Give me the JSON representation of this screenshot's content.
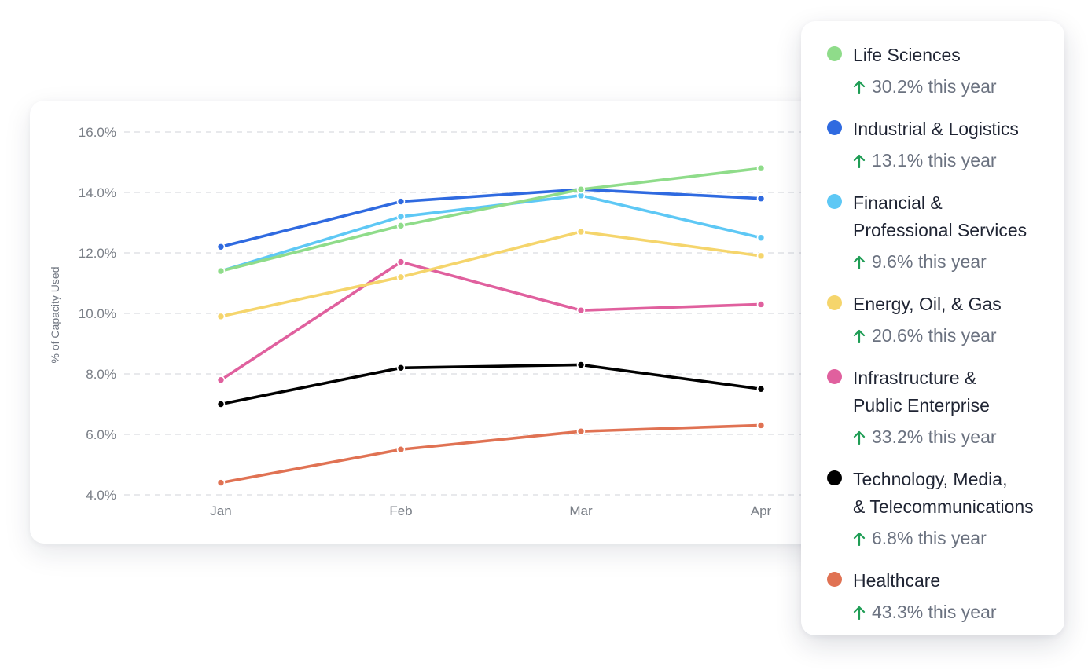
{
  "chart_data": {
    "type": "line",
    "categories": [
      "Jan",
      "Feb",
      "Mar",
      "Apr"
    ],
    "ylabel": "% of Capacity Used",
    "ylim": [
      4.0,
      16.0
    ],
    "yticks": [
      4.0,
      6.0,
      8.0,
      10.0,
      12.0,
      14.0,
      16.0
    ],
    "ytick_labels": [
      "4.0%",
      "6.0%",
      "8.0%",
      "10.0%",
      "12.0%",
      "14.0%",
      "16.0%"
    ],
    "grid": "horizontal dashed",
    "legend": "right",
    "series": [
      {
        "name": "Life Sciences",
        "color": "#8fdc8a",
        "values": [
          11.4,
          12.9,
          14.1,
          14.8
        ]
      },
      {
        "name": "Industrial & Logistics",
        "color": "#2f6ae0",
        "values": [
          12.2,
          13.7,
          14.1,
          13.8
        ]
      },
      {
        "name": "Financial & Professional Services",
        "color": "#5ec8f5",
        "values": [
          11.4,
          13.2,
          13.9,
          12.5
        ]
      },
      {
        "name": "Energy, Oil, & Gas",
        "color": "#f5d56c",
        "values": [
          9.9,
          11.2,
          12.7,
          11.9
        ]
      },
      {
        "name": "Infrastructure & Public Enterprise",
        "color": "#e0609e",
        "values": [
          7.8,
          11.7,
          10.1,
          10.3
        ]
      },
      {
        "name": "Technology, Media, & Telecommunications",
        "color": "#000000",
        "values": [
          7.0,
          8.2,
          8.3,
          7.5
        ]
      },
      {
        "name": "Healthcare",
        "color": "#e07253",
        "values": [
          4.4,
          5.5,
          6.1,
          6.3
        ]
      }
    ]
  },
  "legend": {
    "arrow_color": "#1f9d55",
    "items": [
      {
        "name": "Life Sciences",
        "change": "30.2% this year"
      },
      {
        "name": "Industrial & Logistics",
        "change": "13.1% this year"
      },
      {
        "name": "Financial &\nProfessional Services",
        "change": "9.6% this year"
      },
      {
        "name": "Energy, Oil, & Gas",
        "change": "20.6% this year"
      },
      {
        "name": "Infrastructure &\nPublic Enterprise",
        "change": "33.2% this year"
      },
      {
        "name": "Technology, Media,\n& Telecommunications",
        "change": "6.8% this year"
      },
      {
        "name": "Healthcare",
        "change": "43.3% this year"
      }
    ]
  }
}
